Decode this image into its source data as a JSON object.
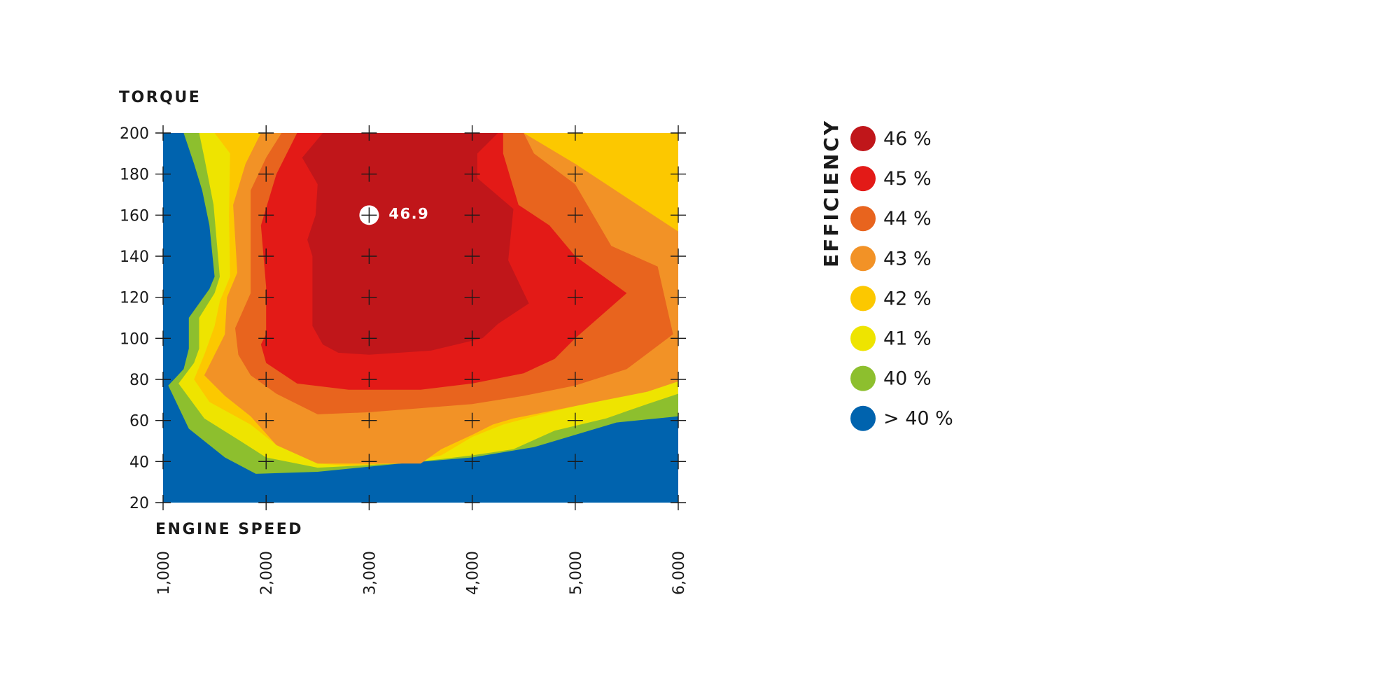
{
  "chart_data": {
    "type": "heatmap",
    "xlabel": "ENGINE SPEED",
    "ylabel": "TORQUE",
    "x_ticks": [
      "1,000",
      "2,000",
      "3,000",
      "4,000",
      "5,000",
      "6,000"
    ],
    "y_ticks": [
      "200",
      "180",
      "160",
      "140",
      "120",
      "100",
      "80",
      "60",
      "40",
      "20"
    ],
    "xlim": [
      1000,
      6000
    ],
    "ylim": [
      20,
      200
    ],
    "grid": true,
    "legend_title": "EFFICIENCY",
    "legend_position": "right",
    "legend": [
      {
        "label": "46 %",
        "color": "#c0161a"
      },
      {
        "label": "45 %",
        "color": "#e31a17"
      },
      {
        "label": "44 %",
        "color": "#e8641e"
      },
      {
        "label": "43 %",
        "color": "#f29226"
      },
      {
        "label": "42 %",
        "color": "#fcc800"
      },
      {
        "label": "41 %",
        "color": "#eee400"
      },
      {
        "label": "40 %",
        "color": "#8dbf2e"
      },
      {
        "label": "> 40 %",
        "color": "#0063ae"
      }
    ],
    "background_color": "#eef2f7",
    "peak": {
      "x": 3000,
      "y": 160,
      "label": "46.9"
    },
    "contours": [
      {
        "level": "> 40 %",
        "points": [
          [
            1000,
            20
          ],
          [
            6000,
            20
          ],
          [
            6000,
            200
          ],
          [
            1000,
            200
          ]
        ]
      },
      {
        "level": "40 %",
        "points": [
          [
            1200,
            200
          ],
          [
            6000,
            200
          ],
          [
            6000,
            62
          ],
          [
            5400,
            59
          ],
          [
            4600,
            47
          ],
          [
            4000,
            42
          ],
          [
            3300,
            39
          ],
          [
            2500,
            35
          ],
          [
            1900,
            34
          ],
          [
            1600,
            42
          ],
          [
            1250,
            56
          ],
          [
            1050,
            77
          ],
          [
            1200,
            85
          ],
          [
            1250,
            95
          ],
          [
            1250,
            110
          ],
          [
            1450,
            124
          ],
          [
            1500,
            130
          ],
          [
            1450,
            155
          ],
          [
            1380,
            172
          ],
          [
            1300,
            185
          ]
        ]
      },
      {
        "level": "41 %",
        "points": [
          [
            1350,
            200
          ],
          [
            6000,
            200
          ],
          [
            6000,
            73
          ],
          [
            5700,
            68
          ],
          [
            5300,
            61
          ],
          [
            4800,
            55
          ],
          [
            4400,
            46
          ],
          [
            4000,
            43
          ],
          [
            3500,
            40
          ],
          [
            2900,
            38
          ],
          [
            2500,
            37
          ],
          [
            2000,
            42
          ],
          [
            1750,
            50
          ],
          [
            1400,
            61
          ],
          [
            1150,
            78
          ],
          [
            1300,
            88
          ],
          [
            1350,
            95
          ],
          [
            1350,
            110
          ],
          [
            1500,
            122
          ],
          [
            1550,
            130
          ],
          [
            1490,
            165
          ],
          [
            1400,
            188
          ]
        ]
      },
      {
        "level": "42 %",
        "points": [
          [
            1500,
            200
          ],
          [
            6000,
            200
          ],
          [
            6000,
            86
          ],
          [
            5600,
            76
          ],
          [
            5000,
            67
          ],
          [
            4600,
            62
          ],
          [
            4300,
            58
          ],
          [
            4000,
            52
          ],
          [
            3700,
            43
          ],
          [
            3300,
            39
          ],
          [
            2800,
            38
          ],
          [
            2500,
            39
          ],
          [
            2100,
            48
          ],
          [
            1850,
            58
          ],
          [
            1450,
            69
          ],
          [
            1300,
            80
          ],
          [
            1400,
            92
          ],
          [
            1500,
            106
          ],
          [
            1550,
            118
          ],
          [
            1650,
            130
          ],
          [
            1640,
            160
          ],
          [
            1650,
            190
          ]
        ]
      },
      {
        "level": "43 %",
        "points": [
          [
            1950,
            200
          ],
          [
            4500,
            200
          ],
          [
            5000,
            185
          ],
          [
            6000,
            152
          ],
          [
            6000,
            79
          ],
          [
            5700,
            74
          ],
          [
            5300,
            70
          ],
          [
            4800,
            65
          ],
          [
            4400,
            61
          ],
          [
            4200,
            58
          ],
          [
            4000,
            53
          ],
          [
            3700,
            46
          ],
          [
            3500,
            39
          ],
          [
            2500,
            39
          ],
          [
            2100,
            48
          ],
          [
            1850,
            62
          ],
          [
            1600,
            72
          ],
          [
            1400,
            82
          ],
          [
            1500,
            92
          ],
          [
            1600,
            102
          ],
          [
            1620,
            120
          ],
          [
            1720,
            132
          ],
          [
            1680,
            165
          ],
          [
            1800,
            185
          ]
        ]
      },
      {
        "level": "44 %",
        "points": [
          [
            2150,
            200
          ],
          [
            4500,
            200
          ],
          [
            4600,
            190
          ],
          [
            5000,
            175
          ],
          [
            5350,
            145
          ],
          [
            5800,
            135
          ],
          [
            5950,
            102
          ],
          [
            5500,
            85
          ],
          [
            5000,
            77
          ],
          [
            4500,
            72
          ],
          [
            4000,
            68
          ],
          [
            3500,
            66
          ],
          [
            3000,
            64
          ],
          [
            2500,
            63
          ],
          [
            2100,
            73
          ],
          [
            1850,
            82
          ],
          [
            1730,
            92
          ],
          [
            1700,
            105
          ],
          [
            1850,
            122
          ],
          [
            1850,
            145
          ],
          [
            1850,
            172
          ],
          [
            2000,
            188
          ]
        ]
      },
      {
        "level": "45 %",
        "points": [
          [
            2300,
            200
          ],
          [
            4300,
            200
          ],
          [
            4300,
            190
          ],
          [
            4450,
            165
          ],
          [
            4750,
            155
          ],
          [
            5000,
            140
          ],
          [
            5500,
            122
          ],
          [
            5000,
            100
          ],
          [
            4800,
            90
          ],
          [
            4500,
            83
          ],
          [
            4000,
            78
          ],
          [
            3500,
            75
          ],
          [
            2800,
            75
          ],
          [
            2300,
            78
          ],
          [
            2000,
            88
          ],
          [
            1950,
            97
          ],
          [
            2000,
            102
          ],
          [
            2000,
            125
          ],
          [
            1950,
            155
          ],
          [
            2100,
            180
          ]
        ]
      },
      {
        "level": "46 %",
        "points": [
          [
            2550,
            200
          ],
          [
            4250,
            200
          ],
          [
            4050,
            190
          ],
          [
            4050,
            178
          ],
          [
            4400,
            163
          ],
          [
            4350,
            138
          ],
          [
            4550,
            117
          ],
          [
            4250,
            107
          ],
          [
            4100,
            100
          ],
          [
            3600,
            94
          ],
          [
            3000,
            92
          ],
          [
            2700,
            93
          ],
          [
            2550,
            97
          ],
          [
            2450,
            106
          ],
          [
            2450,
            140
          ],
          [
            2400,
            148
          ],
          [
            2480,
            160
          ],
          [
            2500,
            175
          ],
          [
            2350,
            188
          ]
        ]
      }
    ]
  }
}
